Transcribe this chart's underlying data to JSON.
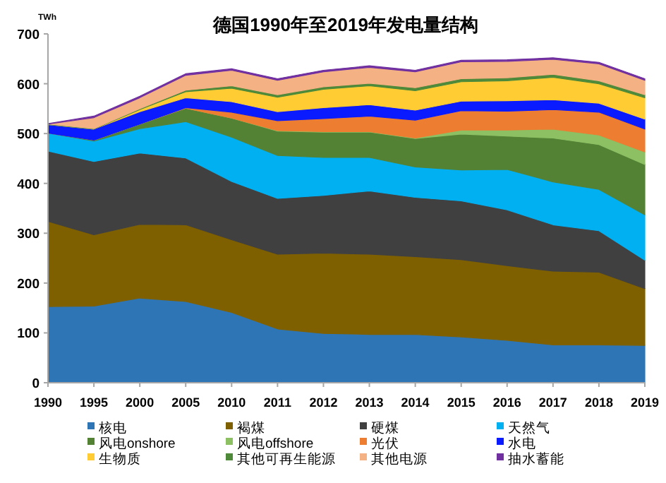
{
  "chart_data": {
    "type": "area",
    "stacked": true,
    "title": "德国1990年至2019年发电量结构",
    "ylabel": "TWh",
    "categories": [
      "1990",
      "1995",
      "2000",
      "2005",
      "2010",
      "2011",
      "2012",
      "2013",
      "2014",
      "2015",
      "2016",
      "2017",
      "2018",
      "2019"
    ],
    "ylim": [
      0,
      700
    ],
    "yticks": [
      0,
      100,
      200,
      300,
      400,
      500,
      600,
      700
    ],
    "legend": "bottom",
    "series": [
      {
        "name": "核电",
        "color": "#2e75b6",
        "values": [
          153,
          154,
          170,
          163,
          141,
          108,
          99,
          97,
          97,
          92,
          85,
          76,
          76,
          75
        ]
      },
      {
        "name": "褐煤",
        "color": "#7f6000",
        "values": [
          171,
          143,
          148,
          154,
          146,
          150,
          161,
          161,
          156,
          155,
          150,
          148,
          146,
          114
        ]
      },
      {
        "name": "硬煤",
        "color": "#404040",
        "values": [
          141,
          147,
          143,
          134,
          117,
          112,
          116,
          127,
          119,
          118,
          112,
          93,
          83,
          57
        ]
      },
      {
        "name": "天然气",
        "color": "#00b0f0",
        "values": [
          36,
          41,
          49,
          73,
          89,
          86,
          76,
          67,
          61,
          62,
          81,
          86,
          83,
          91
        ]
      },
      {
        "name": "风电onshore",
        "color": "#548235",
        "values": [
          0,
          2,
          9,
          27,
          38,
          49,
          51,
          51,
          57,
          72,
          67,
          88,
          90,
          101
        ]
      },
      {
        "name": "风电offshore",
        "color": "#8cc063",
        "values": [
          0,
          0,
          0,
          0,
          0,
          1,
          1,
          1,
          1,
          8,
          12,
          18,
          19,
          25
        ]
      },
      {
        "name": "光伏",
        "color": "#ed7d31",
        "values": [
          0,
          0,
          0,
          1,
          12,
          20,
          26,
          31,
          36,
          39,
          38,
          39,
          46,
          46
        ]
      },
      {
        "name": "水电",
        "color": "#0a1bff",
        "values": [
          17,
          22,
          25,
          20,
          21,
          18,
          22,
          23,
          20,
          19,
          21,
          20,
          18,
          20
        ]
      },
      {
        "name": "生物质",
        "color": "#ffcc33",
        "values": [
          0,
          0,
          4,
          12,
          27,
          29,
          37,
          38,
          39,
          39,
          40,
          45,
          39,
          43
        ]
      },
      {
        "name": "其他可再生能源",
        "color": "#4e8a3a",
        "values": [
          1,
          1,
          2,
          3,
          5,
          5,
          5,
          5,
          6,
          6,
          6,
          6,
          6,
          6
        ]
      },
      {
        "name": "其他电源",
        "color": "#f4b183",
        "values": [
          0,
          22,
          22,
          30,
          31,
          29,
          30,
          32,
          32,
          34,
          33,
          30,
          34,
          29
        ]
      },
      {
        "name": "抽水蓄能",
        "color": "#7030a0",
        "values": [
          1,
          3,
          3,
          3,
          3,
          3,
          3,
          3,
          3,
          3,
          3,
          3,
          3,
          3
        ]
      }
    ]
  }
}
